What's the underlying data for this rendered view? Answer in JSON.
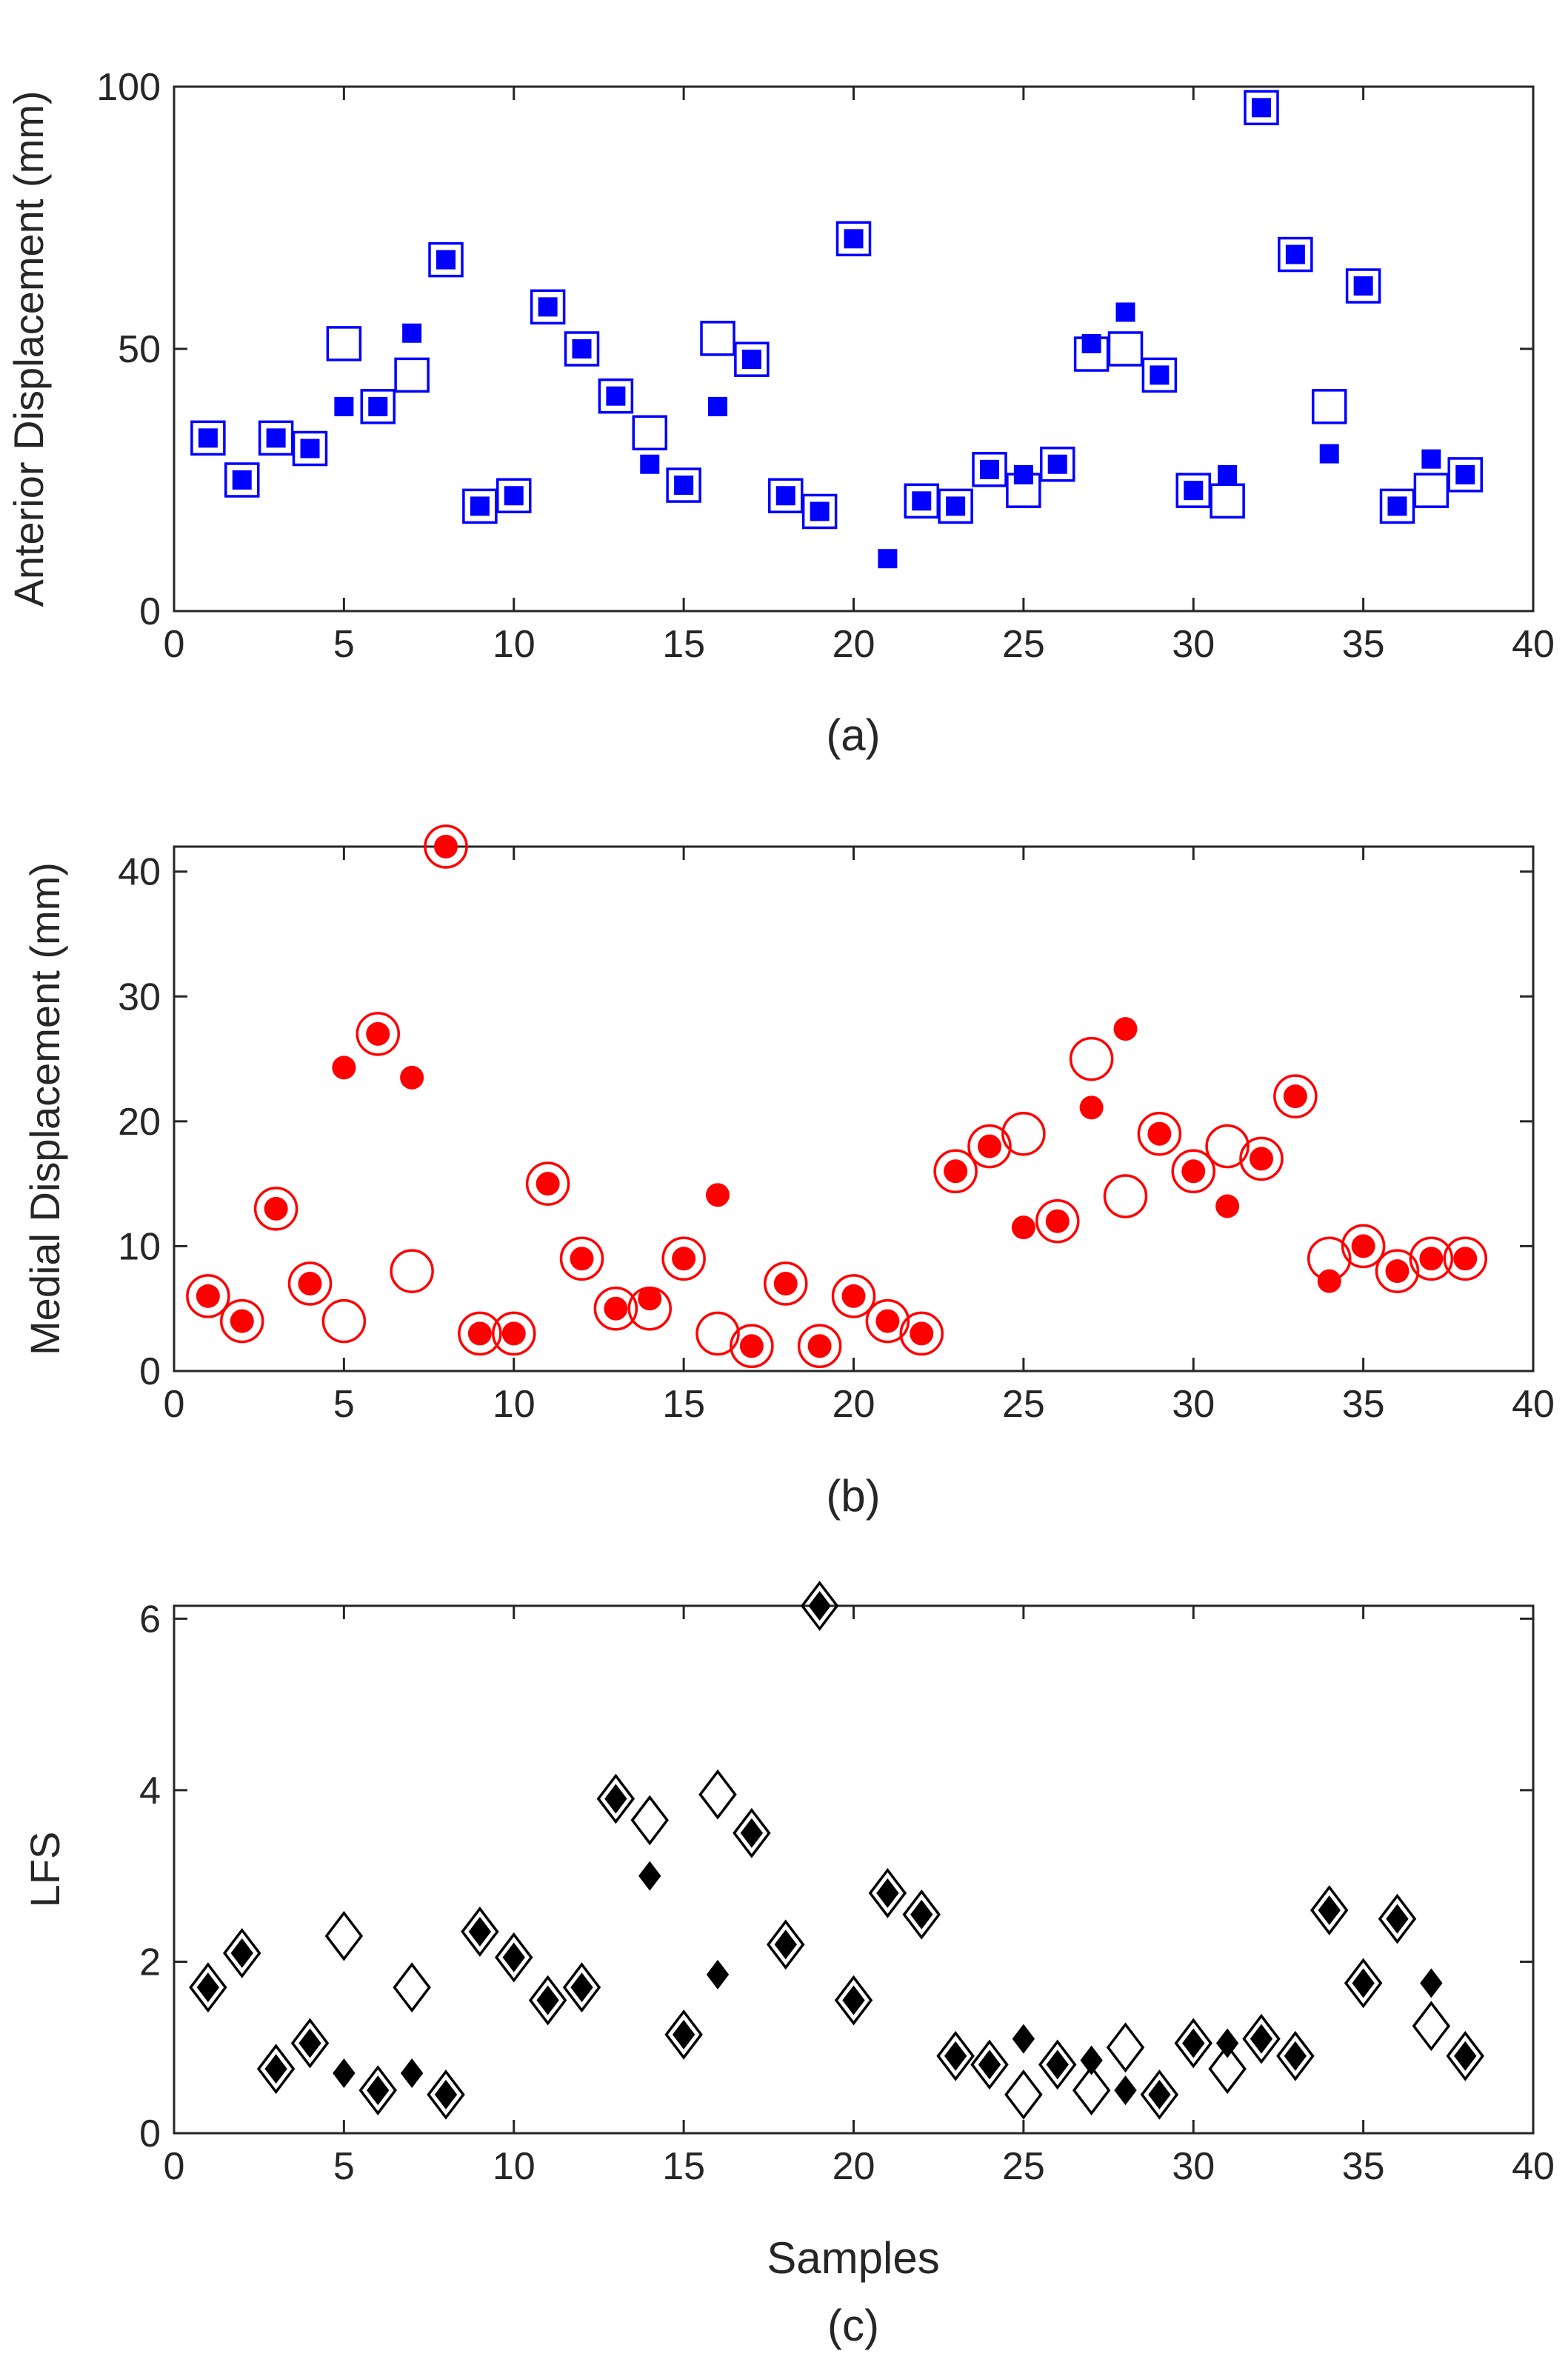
{
  "chart_data": [
    {
      "type": "scatter",
      "panel": "(a)",
      "caption": "(a)",
      "xlabel": "",
      "ylabel": "Anterior Displacement (mm)",
      "xlim": [
        0,
        40
      ],
      "ylim": [
        0,
        100
      ],
      "xticks": [
        0,
        5,
        10,
        15,
        20,
        25,
        30,
        35,
        40
      ],
      "yticks": [
        0,
        50,
        100
      ],
      "color": "#0000ff",
      "series": [
        {
          "name": "open squares",
          "marker": "square-open",
          "x": [
            1,
            2,
            3,
            4,
            5,
            6,
            7,
            8,
            9,
            10,
            11,
            12,
            13,
            14,
            15,
            16,
            17,
            18,
            19,
            20,
            22,
            23,
            24,
            25,
            26,
            27,
            28,
            29,
            30,
            31,
            32,
            33,
            34,
            35,
            36,
            37,
            38
          ],
          "y": [
            33,
            25,
            33,
            31,
            51,
            39,
            45,
            67,
            20,
            22,
            58,
            50,
            41,
            34,
            24,
            52,
            48,
            22,
            19,
            71,
            21,
            20,
            27,
            23,
            28,
            49,
            50,
            45,
            23,
            21,
            96,
            68,
            39,
            62,
            20,
            23,
            26
          ]
        },
        {
          "name": "filled squares",
          "marker": "square-filled",
          "x": [
            1,
            2,
            3,
            4,
            5,
            6,
            7,
            8,
            9,
            10,
            11,
            12,
            13,
            14,
            15,
            16,
            17,
            18,
            19,
            20,
            21,
            22,
            23,
            24,
            25,
            26,
            27,
            28,
            29,
            30,
            31,
            32,
            33,
            34,
            35,
            36,
            37,
            38
          ],
          "y": [
            33,
            25,
            33,
            31,
            39,
            39,
            53,
            67,
            20,
            22,
            58,
            50,
            41,
            28,
            24,
            39,
            48,
            22,
            19,
            71,
            10,
            21,
            20,
            27,
            26,
            28,
            51,
            57,
            45,
            23,
            26,
            96,
            68,
            30,
            62,
            20,
            29,
            26
          ]
        }
      ]
    },
    {
      "type": "scatter",
      "panel": "(b)",
      "caption": "(b)",
      "xlabel": "",
      "ylabel": "Medial Displacement (mm)",
      "xlim": [
        0,
        40
      ],
      "ylim": [
        0,
        42
      ],
      "xticks": [
        0,
        5,
        10,
        15,
        20,
        25,
        30,
        35,
        40
      ],
      "yticks": [
        0,
        10,
        20,
        30,
        40
      ],
      "color": "#ff0000",
      "series": [
        {
          "name": "open circles",
          "marker": "circle-open",
          "x": [
            1,
            2,
            3,
            4,
            5,
            6,
            7,
            8,
            9,
            10,
            11,
            12,
            13,
            14,
            15,
            16,
            17,
            18,
            19,
            20,
            21,
            22,
            23,
            24,
            25,
            26,
            27,
            28,
            29,
            30,
            31,
            32,
            33,
            34,
            35,
            36,
            37,
            38
          ],
          "y": [
            6,
            4,
            13,
            7,
            4,
            27,
            8,
            42,
            3,
            3,
            15,
            9,
            5,
            5,
            9,
            3,
            2,
            7,
            2,
            6,
            4,
            3,
            16,
            18,
            19,
            12,
            25,
            14,
            19,
            16,
            18,
            17,
            22,
            9,
            10,
            8,
            9,
            9
          ]
        },
        {
          "name": "filled circles",
          "marker": "circle-filled",
          "x": [
            1,
            2,
            3,
            4,
            5,
            6,
            7,
            8,
            9,
            10,
            11,
            12,
            13,
            14,
            15,
            16,
            17,
            18,
            19,
            20,
            21,
            22,
            23,
            24,
            25,
            26,
            27,
            28,
            29,
            30,
            31,
            32,
            33,
            34,
            35,
            36,
            37,
            38
          ],
          "y": [
            6,
            4,
            13,
            7,
            24.3,
            27,
            23.5,
            42,
            3,
            3,
            15,
            9,
            5,
            5.8,
            9,
            14.1,
            2,
            7,
            2,
            6,
            4,
            3,
            16,
            18,
            11.5,
            12,
            21.1,
            27.4,
            19,
            16,
            13.2,
            17,
            22,
            7.2,
            10,
            8,
            9,
            9
          ]
        }
      ]
    },
    {
      "type": "scatter",
      "panel": "(c)",
      "caption": "(c)",
      "xlabel": "Samples",
      "ylabel": "LFS",
      "xlim": [
        0,
        40
      ],
      "ylim": [
        0,
        6.15
      ],
      "xticks": [
        0,
        5,
        10,
        15,
        20,
        25,
        30,
        35,
        40
      ],
      "yticks": [
        0,
        2,
        4,
        6
      ],
      "color": "#000000",
      "series": [
        {
          "name": "open diamonds",
          "marker": "diamond-open",
          "x": [
            1,
            2,
            3,
            4,
            5,
            6,
            7,
            8,
            9,
            10,
            11,
            12,
            13,
            14,
            15,
            16,
            17,
            18,
            19,
            20,
            21,
            22,
            23,
            24,
            25,
            26,
            27,
            28,
            29,
            30,
            31,
            32,
            33,
            34,
            35,
            36,
            37,
            38
          ],
          "y": [
            1.7,
            2.1,
            0.75,
            1.05,
            2.3,
            0.5,
            1.7,
            0.45,
            2.35,
            2.05,
            1.55,
            1.7,
            3.9,
            3.65,
            1.15,
            3.95,
            3.5,
            2.2,
            6.15,
            1.55,
            2.8,
            2.55,
            0.9,
            0.8,
            0.45,
            0.8,
            0.5,
            1.0,
            0.45,
            1.05,
            0.75,
            1.1,
            0.9,
            2.6,
            1.75,
            2.5,
            1.25,
            0.9
          ]
        },
        {
          "name": "filled diamonds",
          "marker": "diamond-filled",
          "x": [
            1,
            2,
            3,
            4,
            5,
            6,
            7,
            8,
            9,
            10,
            11,
            12,
            13,
            14,
            15,
            16,
            17,
            18,
            19,
            20,
            21,
            22,
            23,
            24,
            25,
            26,
            27,
            28,
            29,
            30,
            31,
            32,
            33,
            34,
            35,
            36,
            37,
            38
          ],
          "y": [
            1.7,
            2.1,
            0.75,
            1.05,
            0.7,
            0.5,
            0.7,
            0.45,
            2.35,
            2.05,
            1.55,
            1.7,
            3.9,
            3.0,
            1.15,
            1.85,
            3.5,
            2.2,
            6.15,
            1.55,
            2.8,
            2.55,
            0.9,
            0.8,
            1.1,
            0.8,
            0.85,
            0.5,
            0.45,
            1.05,
            1.05,
            1.1,
            0.9,
            2.6,
            1.75,
            2.5,
            1.75,
            0.9
          ]
        }
      ]
    }
  ]
}
